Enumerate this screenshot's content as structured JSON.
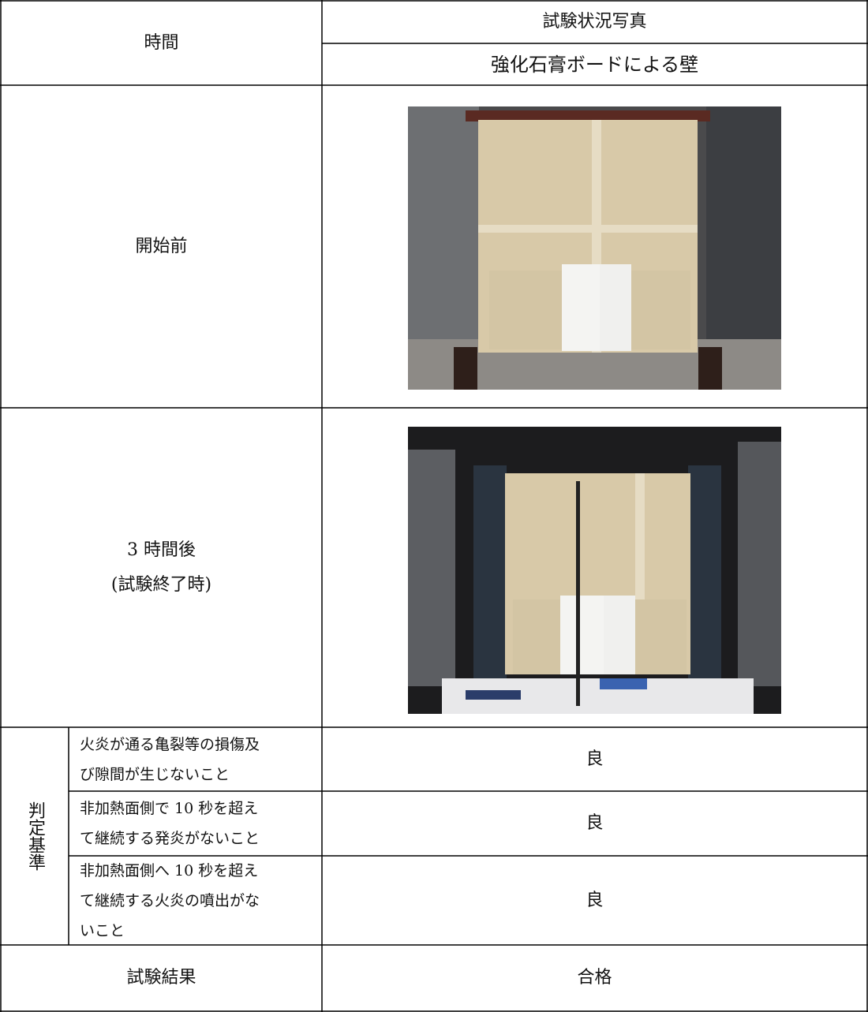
{
  "table": {
    "header": {
      "time": "時間",
      "photos": "試験状況写真",
      "specimen": "強化石膏ボードによる壁"
    },
    "rows": [
      {
        "time_lines": [
          "開始前"
        ]
      },
      {
        "time_lines": [
          "3 時間後",
          "(試験終了時)"
        ]
      }
    ],
    "criteria": {
      "label": "判定基準",
      "items": [
        {
          "text_lines": [
            "火炎が通る亀裂等の損傷及",
            "び隙間が生じないこと"
          ],
          "result": "良"
        },
        {
          "text_lines": [
            "非加熱面側で 10 秒を超え",
            "て継続する発炎がないこと"
          ],
          "result": "良"
        },
        {
          "text_lines": [
            "非加熱面側へ 10 秒を超え",
            "て継続する火炎の噴出がな",
            "いこと"
          ],
          "result": "良"
        }
      ]
    },
    "result": {
      "label": "試験結果",
      "value": "合格"
    }
  }
}
